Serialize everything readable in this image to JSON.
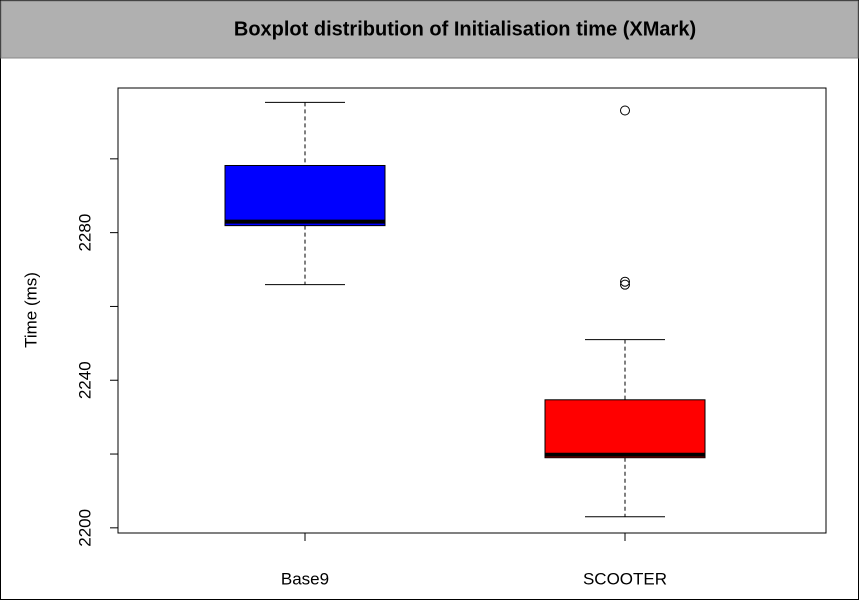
{
  "chart_data": {
    "type": "boxplot",
    "title": "Boxplot distribution of Initialisation time (XMark)",
    "y_label": "Time (ms)",
    "categories": [
      "Base9",
      "SCOOTER"
    ],
    "boxes": [
      {
        "color": "#0000ff",
        "whisker_low": 2265.9,
        "q1": 2281.9,
        "median": 2283,
        "q3": 2298.2,
        "whisker_high": 2315.3,
        "outliers": []
      },
      {
        "color": "#ff0000",
        "whisker_low": 2203,
        "q1": 2219,
        "median": 2219.8,
        "q3": 2234.7,
        "whisker_high": 2251,
        "outliers": [
          2313.1,
          2266.7,
          2265.9
        ]
      }
    ],
    "ylim": [
      2198.6,
      2319.2
    ],
    "yticks": [
      2200,
      2240,
      2280
    ],
    "minor_yticks": [
      2220,
      2260,
      2300
    ]
  }
}
